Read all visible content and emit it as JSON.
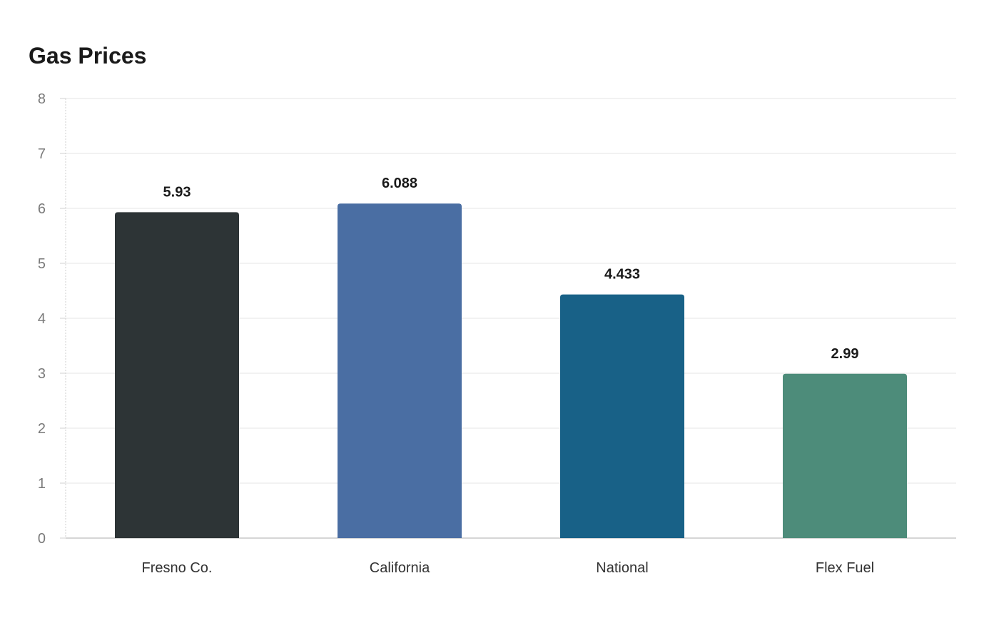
{
  "chart_data": {
    "type": "bar",
    "title": "Gas Prices",
    "xlabel": "",
    "ylabel": "",
    "categories": [
      "Fresno Co.",
      "California",
      "National",
      "Flex Fuel"
    ],
    "values": [
      5.93,
      6.088,
      4.433,
      2.99
    ],
    "value_labels": [
      "5.93",
      "6.088",
      "4.433",
      "2.99"
    ],
    "colors": [
      "#2d3436",
      "#4a6ea3",
      "#186187",
      "#4d8c7a"
    ],
    "ylim": [
      0,
      8
    ],
    "yticks": [
      0,
      1,
      2,
      3,
      4,
      5,
      6,
      7,
      8
    ],
    "grid": true,
    "legend": "none"
  }
}
